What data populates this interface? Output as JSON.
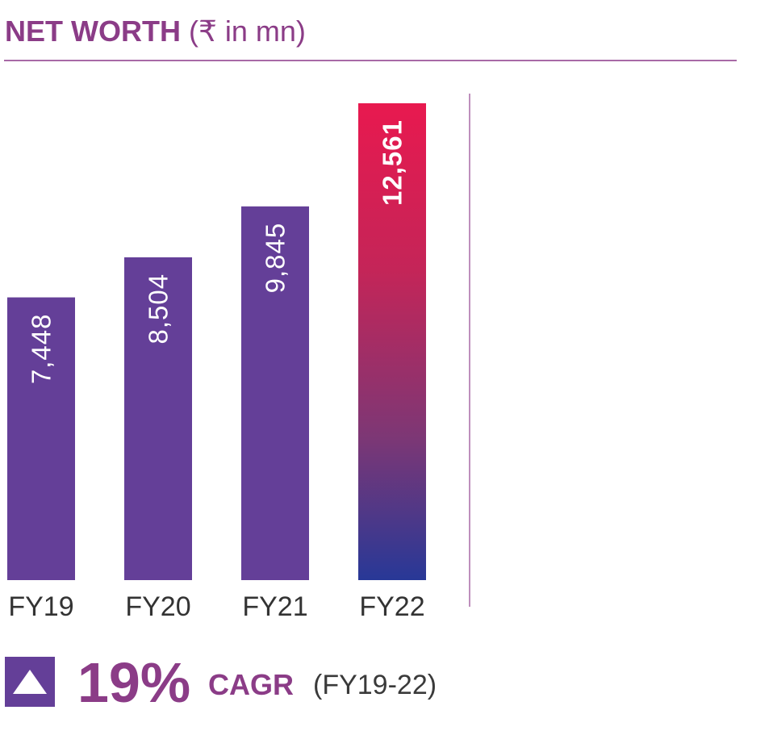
{
  "header": {
    "title": "NET WORTH",
    "unit": "(₹ in mn)"
  },
  "chart_data": {
    "type": "bar",
    "title": "NET WORTH",
    "ylabel": "₹ in mn",
    "categories": [
      "FY19",
      "FY20",
      "FY21",
      "FY22"
    ],
    "values": [
      7448,
      8504,
      9845,
      12561
    ],
    "value_labels": [
      "7,448",
      "8,504",
      "9,845",
      "12,561"
    ],
    "ylim": [
      0,
      12561
    ],
    "grid": false,
    "legend": "none",
    "highlight_index": 3
  },
  "footer": {
    "cagr_value": "19%",
    "cagr_label": "CAGR",
    "cagr_period": "(FY19-22)",
    "icon": "up-triangle-icon"
  },
  "colors": {
    "title": "#8b3c87",
    "rule": "#a86aa6",
    "bar": "#643f98",
    "highlight_top": "#e8194f",
    "highlight_bottom": "#283897",
    "bar_label": "#ffffff",
    "axis_text": "#333333"
  }
}
